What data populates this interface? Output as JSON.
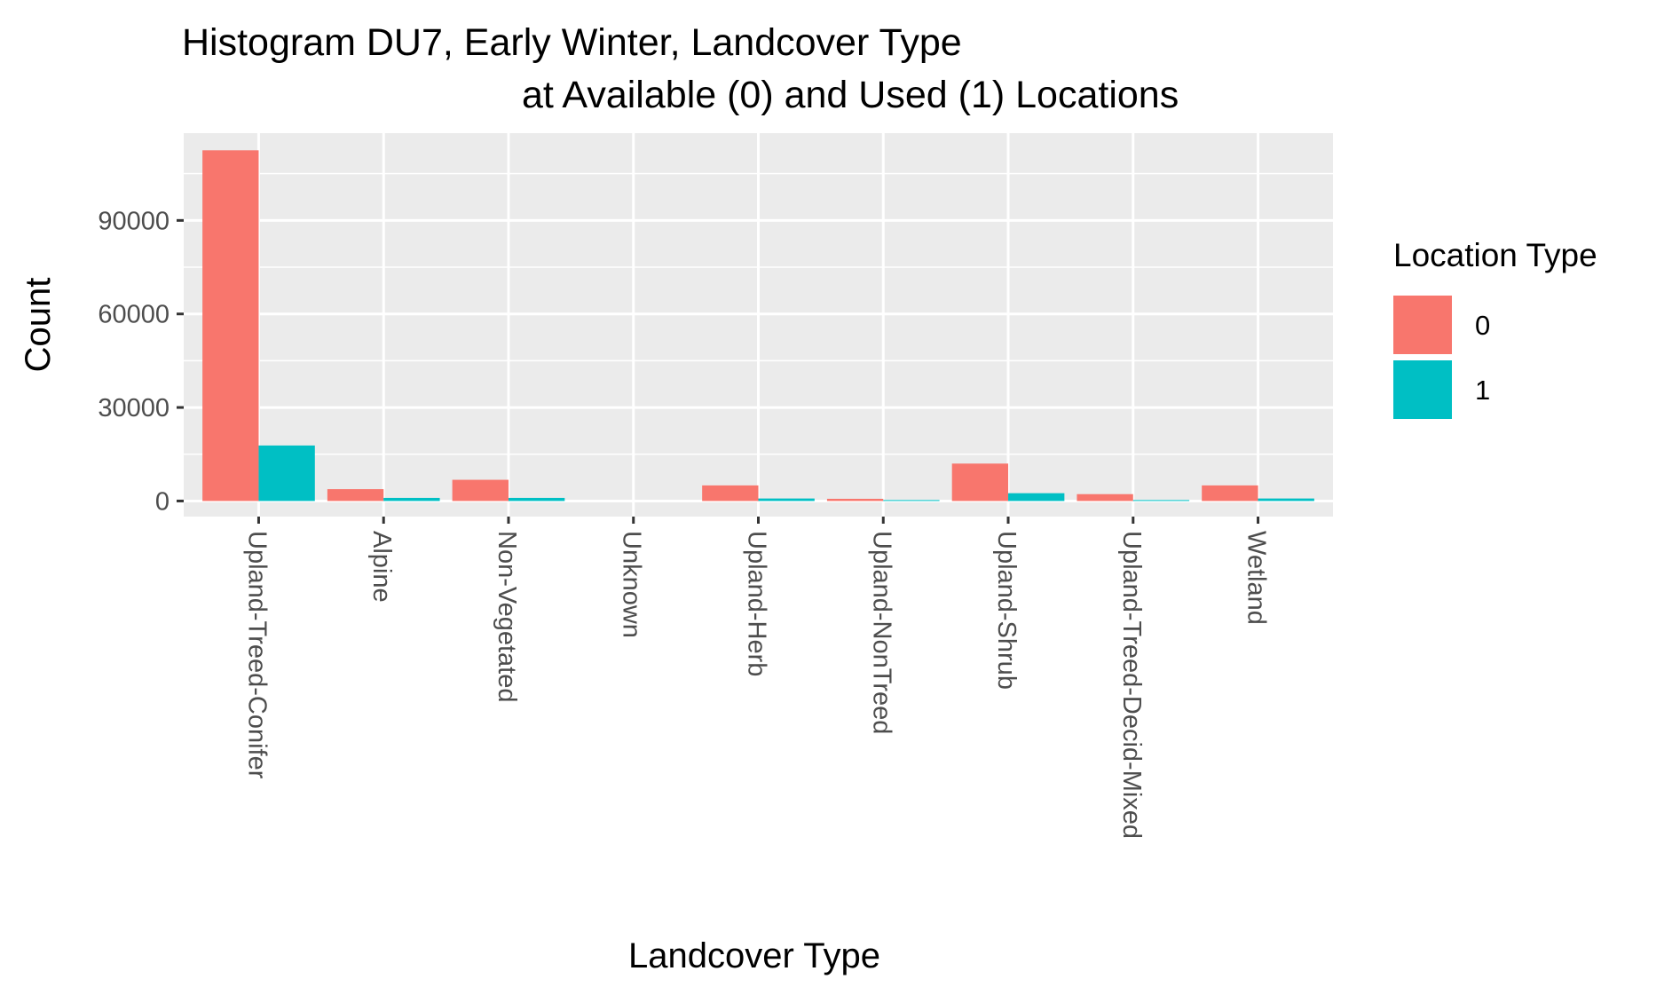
{
  "chart_data": {
    "type": "bar",
    "title_lines": [
      "Histogram DU7, Early Winter, Landcover Type",
      "at Available (0) and Used (1) Locations"
    ],
    "xlabel": "Landcover Type",
    "ylabel": "Count",
    "categories": [
      "Upland-Treed-Conifer",
      "Alpine",
      "Non-Vegetated",
      "Unknown",
      "Upland-Herb",
      "Upland-NonTreed",
      "Upland-Shrub",
      "Upland-Treed-Decid-Mixed",
      "Wetland"
    ],
    "series": [
      {
        "name": "0",
        "color": "#F8766D",
        "values": [
          112500,
          3800,
          6800,
          0,
          5000,
          700,
          12000,
          2200,
          5000
        ]
      },
      {
        "name": "1",
        "color": "#00BFC4",
        "values": [
          17800,
          1000,
          1000,
          0,
          800,
          300,
          2500,
          300,
          800
        ]
      }
    ],
    "ylim": [
      -5000,
      118000
    ],
    "yticks": [
      0,
      30000,
      60000,
      90000
    ],
    "ytick_labels": [
      "0",
      "30000",
      "60000",
      "90000"
    ],
    "grid": true,
    "panel_background": "#EBEBEB",
    "legend": {
      "title": "Location Type",
      "position": "right",
      "entries": [
        "0",
        "1"
      ]
    }
  }
}
